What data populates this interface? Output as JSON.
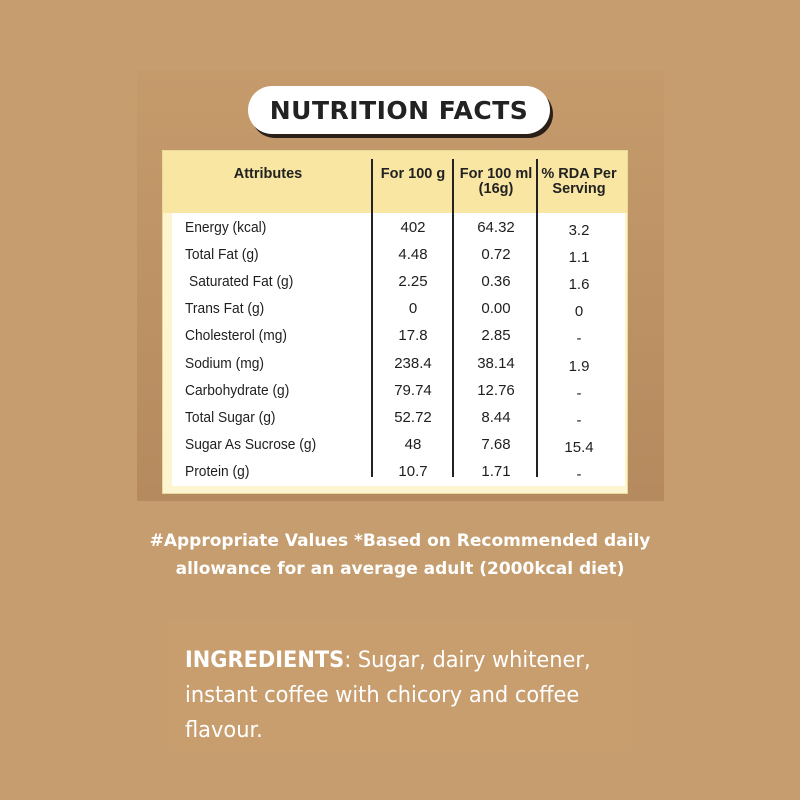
{
  "title": "NUTRITION FACTS",
  "table": {
    "headers": [
      {
        "line1": "Attributes",
        "line2": ""
      },
      {
        "line1": "For 100 g",
        "line2": ""
      },
      {
        "line1": "For 100 ml",
        "line2": "(16g)"
      },
      {
        "line1": "% RDA Per",
        "line2": "Serving"
      }
    ],
    "rows": [
      {
        "attribute": "Energy (kcal)",
        "per100g": "402",
        "per100ml": "64.32",
        "rda": "3.2"
      },
      {
        "attribute": "Total Fat (g)",
        "per100g": "4.48",
        "per100ml": "0.72",
        "rda": "1.1"
      },
      {
        "attribute": "Saturated Fat (g)",
        "per100g": "2.25",
        "per100ml": "0.36",
        "rda": "1.6"
      },
      {
        "attribute": "Trans Fat (g)",
        "per100g": "0",
        "per100ml": "0.00",
        "rda": "0"
      },
      {
        "attribute": "Cholesterol (mg)",
        "per100g": "17.8",
        "per100ml": "2.85",
        "rda": "-"
      },
      {
        "attribute": "Sodium (mg)",
        "per100g": "238.4",
        "per100ml": "38.14",
        "rda": "1.9"
      },
      {
        "attribute": "Carbohydrate (g)",
        "per100g": "79.74",
        "per100ml": "12.76",
        "rda": "-"
      },
      {
        "attribute": "Total Sugar (g)",
        "per100g": "52.72",
        "per100ml": "8.44",
        "rda": "-"
      },
      {
        "attribute": "Sugar As Sucrose (g)",
        "per100g": "48",
        "per100ml": "7.68",
        "rda": "15.4"
      },
      {
        "attribute": "Protein (g)",
        "per100g": "10.7",
        "per100ml": "1.71",
        "rda": "-"
      }
    ]
  },
  "note": {
    "line1": "#Appropriate Values *Based on Recommended daily",
    "line2": "allowance for an average adult (2000kcal diet)"
  },
  "ingredients": {
    "label": "INGREDIENTS",
    "text": ": Sugar, dairy whitener, instant coffee with chicory and coffee flavour."
  },
  "colors": {
    "background": "#c59d6e",
    "card": "#fdf5cf",
    "header": "#f8e6a2",
    "text_light": "#ffffff"
  }
}
